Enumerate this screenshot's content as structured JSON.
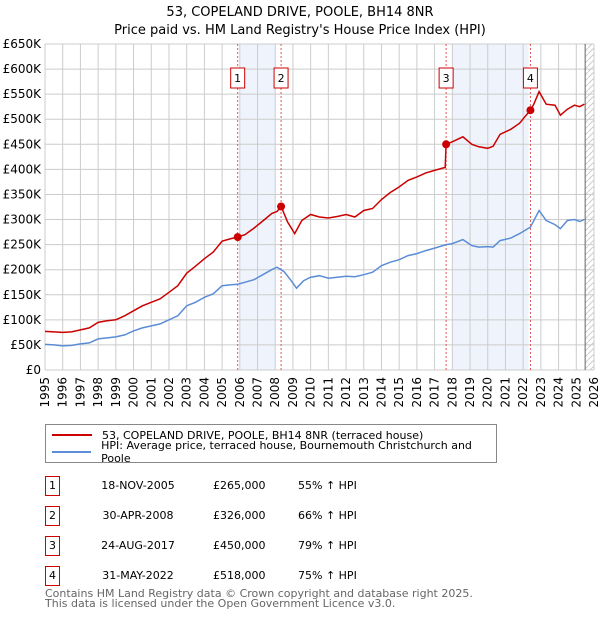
{
  "title_line1": "53, COPELAND DRIVE, POOLE, BH14 8NR",
  "title_line2": "Price paid vs. HM Land Registry's House Price Index (HPI)",
  "chart_data": {
    "type": "line",
    "xlim": [
      1995,
      2026
    ],
    "ylim": [
      0,
      650000
    ],
    "yticks": [
      0,
      50000,
      100000,
      150000,
      200000,
      250000,
      300000,
      350000,
      400000,
      450000,
      500000,
      550000,
      600000,
      650000
    ],
    "ytick_labels": [
      "£0",
      "£50K",
      "£100K",
      "£150K",
      "£200K",
      "£250K",
      "£300K",
      "£350K",
      "£400K",
      "£450K",
      "£500K",
      "£550K",
      "£600K",
      "£650K"
    ],
    "xticks": [
      "1995",
      "1996",
      "1997",
      "1998",
      "1999",
      "2000",
      "2001",
      "2002",
      "2003",
      "2004",
      "2005",
      "2006",
      "2007",
      "2008",
      "2009",
      "2010",
      "2011",
      "2012",
      "2013",
      "2014",
      "2015",
      "2016",
      "2017",
      "2018",
      "2019",
      "2020",
      "2021",
      "2022",
      "2023",
      "2024",
      "2025",
      "2026"
    ],
    "grid": true,
    "shaded_ranges": [
      [
        2006.0,
        2008.0
      ],
      [
        2018.0,
        2022.3
      ]
    ],
    "future_hatch_from": 2025.5,
    "series": [
      {
        "name": "53, COPELAND DRIVE, POOLE, BH14 8NR (terraced house)",
        "color": "#cc0000",
        "x": [
          1995,
          1995.5,
          1996,
          1996.5,
          1997,
          1997.5,
          1998,
          1998.5,
          1999,
          1999.5,
          2000,
          2000.5,
          2001,
          2001.5,
          2002,
          2002.5,
          2003,
          2003.5,
          2004,
          2004.5,
          2005,
          2005.5,
          2005.88,
          2006.3,
          2006.8,
          2007.3,
          2007.8,
          2008.1,
          2008.33,
          2008.7,
          2009.1,
          2009.5,
          2010,
          2010.5,
          2011,
          2011.5,
          2012,
          2012.5,
          2013,
          2013.5,
          2014,
          2014.5,
          2015,
          2015.5,
          2016,
          2016.5,
          2017,
          2017.6,
          2017.65,
          2018,
          2018.6,
          2019.1,
          2019.5,
          2020,
          2020.3,
          2020.7,
          2021.3,
          2021.8,
          2022.1,
          2022.41,
          2022.6,
          2022.9,
          2023.3,
          2023.8,
          2024.1,
          2024.5,
          2024.9,
          2025.2,
          2025.45
        ],
        "y": [
          77000,
          76000,
          75000,
          76000,
          80000,
          84000,
          95000,
          98000,
          100000,
          108000,
          118000,
          128000,
          135000,
          142000,
          155000,
          168000,
          193000,
          207000,
          222000,
          235000,
          257000,
          262000,
          265000,
          270000,
          283000,
          297000,
          312000,
          316000,
          326000,
          295000,
          272000,
          298000,
          310000,
          305000,
          303000,
          306000,
          310000,
          305000,
          318000,
          322000,
          340000,
          354000,
          365000,
          378000,
          385000,
          393000,
          398000,
          404000,
          450000,
          455000,
          465000,
          450000,
          445000,
          442000,
          446000,
          470000,
          480000,
          492000,
          505000,
          518000,
          530000,
          555000,
          530000,
          528000,
          508000,
          520000,
          528000,
          525000,
          530000
        ]
      },
      {
        "name": "HPI: Average price, terraced house, Bournemouth Christchurch and Poole",
        "color": "#5b8dd6",
        "x": [
          1995,
          1995.5,
          1996,
          1996.5,
          1997,
          1997.5,
          1998,
          1998.5,
          1999,
          1999.5,
          2000,
          2000.5,
          2001,
          2001.5,
          2002,
          2002.5,
          2003,
          2003.5,
          2004,
          2004.5,
          2005,
          2005.5,
          2005.88,
          2006.3,
          2006.8,
          2007.3,
          2007.8,
          2008.1,
          2008.5,
          2008.9,
          2009.2,
          2009.6,
          2010,
          2010.5,
          2011,
          2011.5,
          2012,
          2012.5,
          2013,
          2013.5,
          2014,
          2014.5,
          2015,
          2015.5,
          2016,
          2016.5,
          2017,
          2017.65,
          2018,
          2018.6,
          2019.1,
          2019.5,
          2020,
          2020.3,
          2020.7,
          2021.3,
          2021.8,
          2022.41,
          2022.9,
          2023.3,
          2023.8,
          2024.1,
          2024.5,
          2024.9,
          2025.2,
          2025.45
        ],
        "y": [
          51000,
          50000,
          48000,
          49000,
          52000,
          54000,
          62000,
          64000,
          66000,
          70000,
          78000,
          84000,
          88000,
          92000,
          100000,
          108000,
          128000,
          135000,
          145000,
          152000,
          168000,
          170000,
          171000,
          175000,
          180000,
          190000,
          200000,
          205000,
          196000,
          178000,
          163000,
          178000,
          185000,
          188000,
          183000,
          185000,
          187000,
          186000,
          190000,
          195000,
          208000,
          215000,
          220000,
          228000,
          232000,
          238000,
          243000,
          250000,
          252000,
          260000,
          248000,
          245000,
          246000,
          245000,
          258000,
          263000,
          272000,
          285000,
          318000,
          298000,
          290000,
          282000,
          298000,
          300000,
          296000,
          300000
        ]
      }
    ],
    "sales": [
      {
        "label": "1",
        "date": "18-NOV-2005",
        "x": 2005.88,
        "price": 265000,
        "price_text": "£265,000",
        "hpi": "55% ↑ HPI"
      },
      {
        "label": "2",
        "date": "30-APR-2008",
        "x": 2008.33,
        "price": 326000,
        "price_text": "£326,000",
        "hpi": "66% ↑ HPI"
      },
      {
        "label": "3",
        "date": "24-AUG-2017",
        "x": 2017.65,
        "price": 450000,
        "price_text": "£450,000",
        "hpi": "79% ↑ HPI"
      },
      {
        "label": "4",
        "date": "31-MAY-2022",
        "x": 2022.41,
        "price": 518000,
        "price_text": "£518,000",
        "hpi": "75% ↑ HPI"
      }
    ]
  },
  "legend": {
    "red": "53, COPELAND DRIVE, POOLE, BH14 8NR (terraced house)",
    "blue": "HPI: Average price, terraced house, Bournemouth Christchurch and Poole"
  },
  "footer": {
    "line1": "Contains HM Land Registry data © Crown copyright and database right 2025.",
    "line2": "This data is licensed under the Open Government Licence v3.0."
  }
}
